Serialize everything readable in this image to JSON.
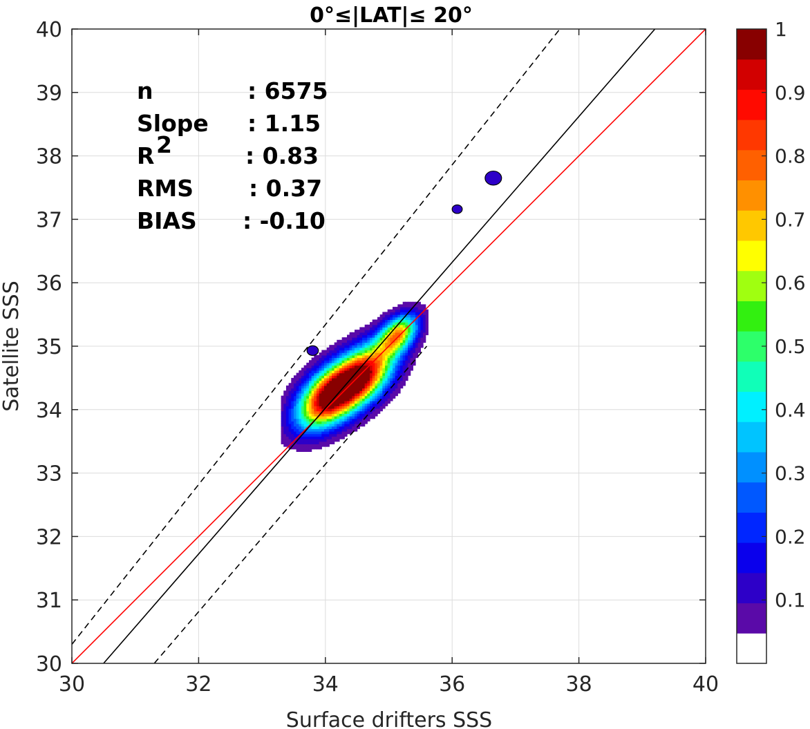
{
  "chart_data": {
    "type": "contour",
    "title": "0°≤|LAT|≤ 20°",
    "xlabel": "Surface drifters SSS",
    "ylabel": "Satellite SSS",
    "xlim": [
      30,
      40
    ],
    "ylim": [
      30,
      40
    ],
    "x_ticks": [
      "30",
      "32",
      "34",
      "36",
      "38",
      "40"
    ],
    "y_ticks": [
      "30",
      "31",
      "32",
      "33",
      "34",
      "35",
      "36",
      "37",
      "38",
      "39",
      "40"
    ],
    "grid": true,
    "stats": [
      {
        "label": "n",
        "value": ": 6575"
      },
      {
        "label": "Slope",
        "value": ": 1.15"
      },
      {
        "label": "R",
        "sup": "2",
        "value": ": 0.83"
      },
      {
        "label": "RMS",
        "value": ": 0.37"
      },
      {
        "label": "BIAS",
        "value": ": -0.10"
      }
    ],
    "lines": [
      {
        "role": "one-to-one",
        "color": "#ff0000",
        "style": "solid",
        "points": [
          [
            30,
            30
          ],
          [
            40,
            40
          ]
        ]
      },
      {
        "role": "regression",
        "color": "#000000",
        "style": "solid",
        "points": [
          [
            30.5,
            30
          ],
          [
            39.2,
            40
          ]
        ]
      },
      {
        "role": "upper-bound",
        "color": "#000000",
        "style": "dashed",
        "points": [
          [
            30,
            30.3
          ],
          [
            37.7,
            40
          ]
        ]
      },
      {
        "role": "lower-bound",
        "color": "#000000",
        "style": "dashed",
        "points": [
          [
            31.3,
            30
          ],
          [
            35.6,
            35
          ]
        ]
      }
    ],
    "density_peaks": [
      {
        "x": 34.05,
        "y": 34.2,
        "value": 1.0
      },
      {
        "x": 34.6,
        "y": 34.55,
        "value": 0.9
      },
      {
        "x": 35.15,
        "y": 35.2,
        "value": 0.7
      }
    ],
    "contour_levels": [
      0.05,
      0.1,
      0.15,
      0.2,
      0.25,
      0.3,
      0.35,
      0.4,
      0.45,
      0.5,
      0.55,
      0.6,
      0.65,
      0.7,
      0.75,
      0.8,
      0.85,
      0.9,
      0.95,
      1.0
    ],
    "colorbar": {
      "ticks": [
        "0.1",
        "0.2",
        "0.3",
        "0.4",
        "0.5",
        "0.6",
        "0.7",
        "0.8",
        "0.9",
        "1"
      ],
      "min": 0,
      "max": 1,
      "colors": [
        "#ffffff",
        "#5a0aa8",
        "#2d00c8",
        "#0a00ec",
        "#0026ff",
        "#0058ff",
        "#0090ff",
        "#00c4ff",
        "#00f0ff",
        "#10ffb8",
        "#2dff6a",
        "#32f010",
        "#a0ff10",
        "#ffff00",
        "#ffc800",
        "#ff9000",
        "#ff6000",
        "#ff3800",
        "#ff0a00",
        "#d20000",
        "#880000"
      ]
    }
  }
}
